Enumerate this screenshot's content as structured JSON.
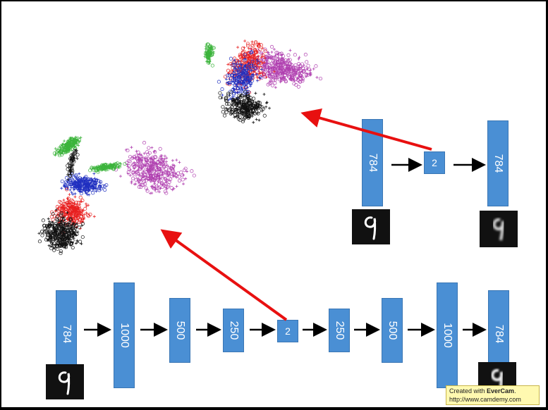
{
  "top_autoencoder": {
    "layers": [
      "784",
      "2",
      "784"
    ]
  },
  "deep_autoencoder": {
    "layers": [
      "784",
      "1000",
      "500",
      "250",
      "2",
      "250",
      "500",
      "1000",
      "784"
    ]
  },
  "watermark": {
    "line1_prefix": "Created with ",
    "line1_brand": "EverCam",
    "line1_suffix": ".",
    "line2": "http://www.camdemy.com"
  },
  "colors": {
    "layer_fill": "#4a8fd4",
    "arrow_red": "#e81010",
    "cluster_green": "#3cb43c",
    "cluster_red": "#e82020",
    "cluster_blue": "#2030c0",
    "cluster_magenta": "#b040b0",
    "cluster_black": "#111111"
  },
  "icons": {
    "input_digit": "digit-nine-image",
    "reconstructed_digit": "blurry-digit-nine-image"
  }
}
